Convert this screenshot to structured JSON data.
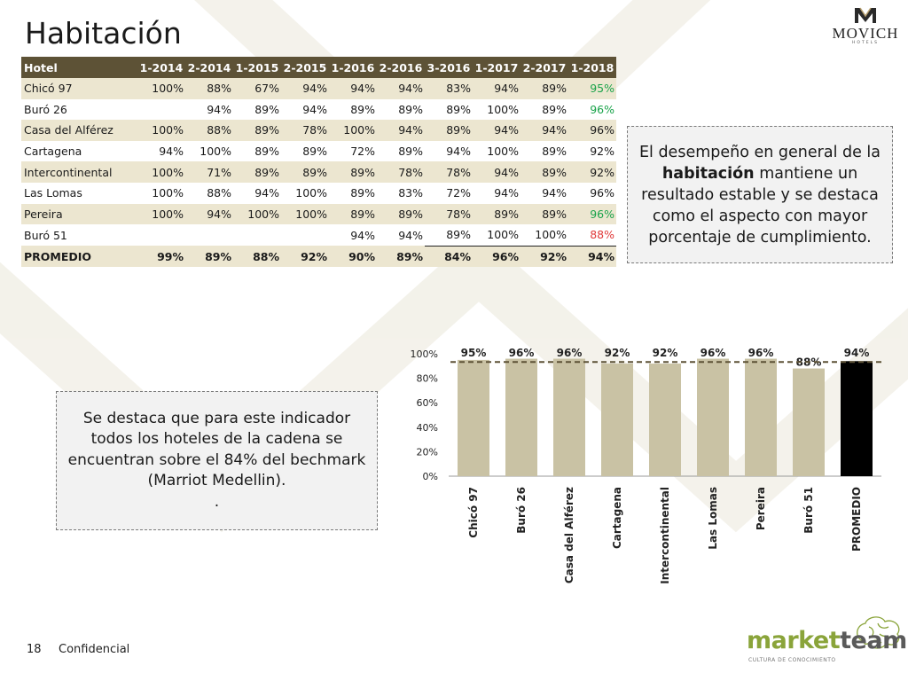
{
  "title": "Habitación",
  "logo": {
    "name": "MOVICH",
    "sub": "HOTELS"
  },
  "table": {
    "header": "Hotel",
    "periods": [
      "1-2014",
      "2-2014",
      "1-2015",
      "2-2015",
      "1-2016",
      "2-2016",
      "3-2016",
      "1-2017",
      "2-2017",
      "1-2018"
    ],
    "rows": [
      {
        "name": "Chicó 97",
        "values": [
          "100%",
          "88%",
          "67%",
          "94%",
          "94%",
          "94%",
          "83%",
          "94%",
          "89%",
          "95%"
        ]
      },
      {
        "name": "Buró 26",
        "values": [
          "",
          "94%",
          "89%",
          "94%",
          "89%",
          "89%",
          "89%",
          "100%",
          "89%",
          "96%"
        ]
      },
      {
        "name": "Casa del Alférez",
        "values": [
          "100%",
          "88%",
          "89%",
          "78%",
          "100%",
          "94%",
          "89%",
          "94%",
          "94%",
          "96%"
        ]
      },
      {
        "name": "Cartagena",
        "values": [
          "94%",
          "100%",
          "89%",
          "89%",
          "72%",
          "89%",
          "94%",
          "100%",
          "89%",
          "92%"
        ]
      },
      {
        "name": "Intercontinental",
        "values": [
          "100%",
          "71%",
          "89%",
          "89%",
          "89%",
          "78%",
          "78%",
          "94%",
          "89%",
          "92%"
        ]
      },
      {
        "name": "Las Lomas",
        "values": [
          "100%",
          "88%",
          "94%",
          "100%",
          "89%",
          "83%",
          "72%",
          "94%",
          "94%",
          "96%"
        ]
      },
      {
        "name": "Pereira",
        "values": [
          "100%",
          "94%",
          "100%",
          "100%",
          "89%",
          "89%",
          "78%",
          "89%",
          "89%",
          "96%"
        ]
      },
      {
        "name": "Buró 51",
        "values": [
          "",
          "",
          "",
          "",
          "94%",
          "94%",
          "89%",
          "100%",
          "100%",
          "88%"
        ]
      }
    ],
    "average": {
      "name": "PROMEDIO",
      "values": [
        "99%",
        "89%",
        "88%",
        "92%",
        "90%",
        "89%",
        "84%",
        "96%",
        "92%",
        "94%"
      ]
    }
  },
  "note1": {
    "line1": "El desempeño en general de la ",
    "bold": "habitación",
    "line2": " mantiene un resultado estable y se destaca como el aspecto con mayor porcentaje de cumplimiento."
  },
  "note2": {
    "text": "Se destaca que para este indicador todos los hoteles de la cadena se encuentran sobre el 84% del bechmark (Marriot Medellin).",
    "dot": "."
  },
  "chart_data": {
    "type": "bar",
    "categories": [
      "Chicó 97",
      "Buró 26",
      "Casa del Alférez",
      "Cartagena",
      "Intercontinental",
      "Las Lomas",
      "Pereira",
      "Buró 51",
      "PROMEDIO"
    ],
    "values": [
      95,
      96,
      96,
      92,
      92,
      96,
      96,
      88,
      94
    ],
    "data_labels": [
      "95%",
      "96%",
      "96%",
      "92%",
      "92%",
      "96%",
      "96%",
      "88%",
      "94%"
    ],
    "yticks": [
      "0%",
      "20%",
      "40%",
      "60%",
      "80%",
      "100%"
    ],
    "ylim": [
      0,
      100
    ],
    "reference_line": 94,
    "colors": {
      "bar": "#c9c2a4",
      "average_bar": "#000000",
      "reference": "#5d5236"
    },
    "grid": false,
    "legend": "none"
  },
  "footer": {
    "page": "18",
    "label": "Confidencial"
  },
  "brand": {
    "market": "market",
    "team": "team",
    "tagline": "CULTURA DE CONOCIMIENTO"
  }
}
